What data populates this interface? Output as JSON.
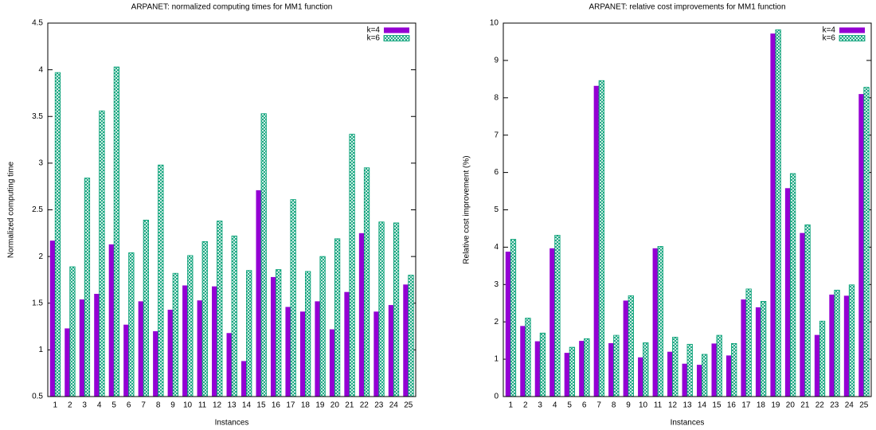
{
  "chart_data": [
    {
      "type": "bar",
      "title": "ARPANET: normalized computing times for MM1 function",
      "xlabel": "Instances",
      "ylabel": "Normalized computing time",
      "categories": [
        "1",
        "2",
        "3",
        "4",
        "5",
        "6",
        "7",
        "8",
        "9",
        "10",
        "11",
        "12",
        "13",
        "14",
        "15",
        "16",
        "17",
        "18",
        "19",
        "20",
        "21",
        "22",
        "23",
        "24",
        "25"
      ],
      "series": [
        {
          "name": "k=4",
          "color": "#9400d3",
          "values": [
            2.17,
            1.23,
            1.54,
            1.6,
            2.13,
            1.27,
            1.52,
            1.2,
            1.43,
            1.69,
            1.53,
            1.68,
            1.18,
            0.88,
            2.71,
            1.78,
            1.46,
            1.41,
            1.52,
            1.22,
            1.62,
            2.25,
            1.41,
            1.48,
            1.7
          ]
        },
        {
          "name": "k=6",
          "color": "#009e73",
          "values": [
            3.97,
            1.89,
            2.84,
            3.56,
            4.03,
            2.04,
            2.39,
            2.98,
            1.82,
            2.01,
            2.16,
            2.38,
            2.22,
            1.85,
            3.53,
            1.86,
            2.61,
            1.84,
            2.0,
            2.19,
            3.31,
            2.95,
            2.37,
            2.36,
            1.8
          ]
        }
      ],
      "ylim": [
        0.5,
        4.5
      ],
      "yticks": [
        0.5,
        1,
        1.5,
        2,
        2.5,
        3,
        3.5,
        4,
        4.5
      ],
      "legend": "upper right"
    },
    {
      "type": "bar",
      "title": "ARPANET: relative cost improvements for MM1 function",
      "xlabel": "Instances",
      "ylabel": "Relative cost improvement (%)",
      "categories": [
        "1",
        "2",
        "3",
        "4",
        "5",
        "6",
        "7",
        "8",
        "9",
        "10",
        "11",
        "12",
        "13",
        "14",
        "15",
        "16",
        "17",
        "18",
        "19",
        "20",
        "21",
        "22",
        "23",
        "24",
        "25"
      ],
      "series": [
        {
          "name": "k=4",
          "color": "#9400d3",
          "values": [
            3.88,
            1.89,
            1.48,
            3.97,
            1.17,
            1.49,
            8.32,
            1.43,
            2.57,
            1.05,
            3.97,
            1.2,
            0.88,
            0.85,
            1.42,
            1.1,
            2.6,
            2.39,
            9.72,
            5.58,
            4.38,
            1.65,
            2.73,
            2.7,
            8.1
          ]
        },
        {
          "name": "k=6",
          "color": "#009e73",
          "values": [
            4.21,
            2.1,
            1.7,
            4.32,
            1.32,
            1.55,
            8.46,
            1.64,
            2.7,
            1.44,
            4.02,
            1.59,
            1.4,
            1.13,
            1.64,
            1.42,
            2.88,
            2.55,
            9.82,
            5.97,
            4.6,
            2.02,
            2.85,
            2.99,
            8.28
          ]
        }
      ],
      "ylim": [
        0,
        10
      ],
      "yticks": [
        0,
        1,
        2,
        3,
        4,
        5,
        6,
        7,
        8,
        9,
        10
      ],
      "legend": "upper right"
    }
  ]
}
